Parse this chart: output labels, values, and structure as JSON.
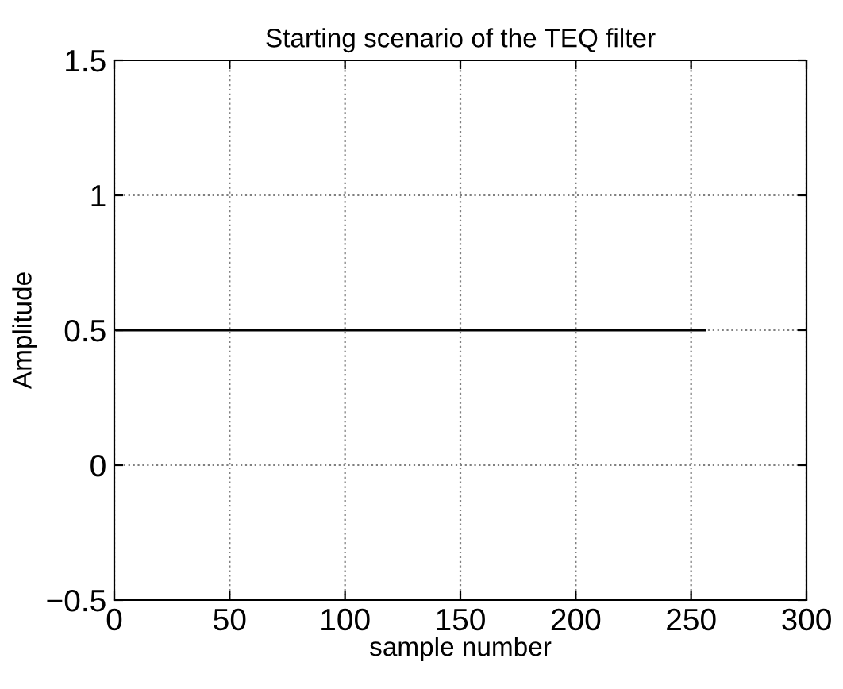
{
  "chart_data": {
    "type": "line",
    "title": "Starting scenario of the TEQ filter",
    "xlabel": "sample number",
    "ylabel": "Amplitude",
    "series": [
      {
        "color": "#000000",
        "x": [
          1,
          256
        ],
        "values": [
          0.5,
          0.5
        ]
      }
    ],
    "xlim": [
      0,
      300
    ],
    "xticks": [
      0,
      50,
      100,
      150,
      200,
      250,
      300
    ],
    "ylim": [
      -0.5,
      1.5
    ],
    "yticks": [
      {
        "value": -0.5,
        "label": "−0.5"
      },
      0,
      0.5,
      1,
      1.5
    ],
    "grid": true,
    "marker": "none",
    "line_style": "solid"
  }
}
